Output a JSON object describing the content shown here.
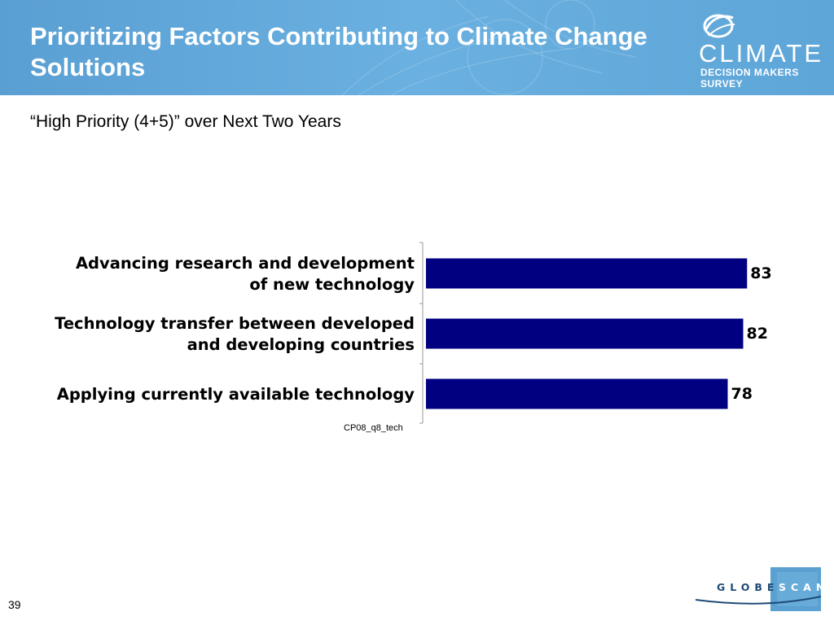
{
  "slide": {
    "title": "Prioritizing Factors Contributing to Climate Change Solutions",
    "subtitle": "“High Priority (4+5)” over Next Two Years",
    "page_number": "39",
    "source_code": "CP08_q8_tech"
  },
  "logo": {
    "word": "CLIMATE",
    "subtitle": "DECISION MAKERS SURVEY"
  },
  "footer_logo": {
    "left": "GLOBE",
    "right": "SCAN"
  },
  "colors": {
    "header": "#5a9fd3",
    "bar": "#000080",
    "globescan_dark": "#1f4a78",
    "globescan_box": "#3d8fc8"
  },
  "chart_data": {
    "type": "bar",
    "orientation": "horizontal",
    "categories": [
      [
        "Advancing research and development",
        "of new technology"
      ],
      [
        "Technology transfer between developed",
        "and developing countries"
      ],
      [
        "Applying currently available technology"
      ]
    ],
    "values": [
      83,
      82,
      78
    ],
    "xlim": [
      0,
      100
    ],
    "grid": false,
    "legend": "none"
  }
}
